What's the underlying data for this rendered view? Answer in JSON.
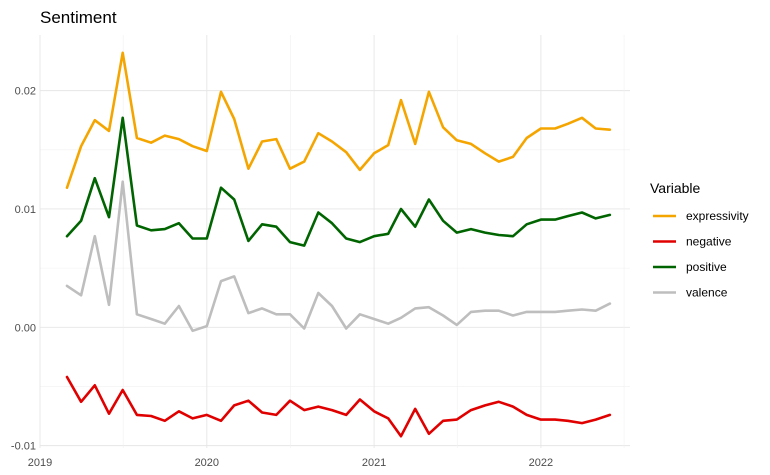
{
  "chart_data": {
    "type": "line",
    "title": "Sentiment",
    "xlabel": "",
    "ylabel": "",
    "x_ticks": [
      "2019",
      "2020",
      "2021",
      "2022"
    ],
    "y_ticks": [
      "0.02",
      "0.01",
      "0.00",
      "-0.01"
    ],
    "y_tick_values": [
      0.02,
      0.01,
      0.0,
      -0.01
    ],
    "xlim": [
      "2019-01-01",
      "2022-07-15"
    ],
    "ylim": [
      -0.0102,
      0.0247
    ],
    "grid": true,
    "legend": {
      "title": "Variable",
      "position": "right"
    },
    "x": [
      "2019-03-01",
      "2019-04-01",
      "2019-05-01",
      "2019-06-01",
      "2019-07-01",
      "2019-08-01",
      "2019-09-01",
      "2019-10-01",
      "2019-11-01",
      "2019-12-01",
      "2020-01-01",
      "2020-02-01",
      "2020-03-01",
      "2020-04-01",
      "2020-05-01",
      "2020-06-01",
      "2020-07-01",
      "2020-08-01",
      "2020-09-01",
      "2020-10-01",
      "2020-11-01",
      "2020-12-01",
      "2021-01-01",
      "2021-02-01",
      "2021-03-01",
      "2021-04-01",
      "2021-05-01",
      "2021-06-01",
      "2021-07-01",
      "2021-08-01",
      "2021-09-01",
      "2021-10-01",
      "2021-11-01",
      "2021-12-01",
      "2022-01-01",
      "2022-02-01",
      "2022-03-01",
      "2022-04-01",
      "2022-05-01",
      "2022-06-01"
    ],
    "series": [
      {
        "name": "expressivity",
        "color": "#f5a500",
        "values": [
          0.0118,
          0.0153,
          0.0175,
          0.0166,
          0.0232,
          0.016,
          0.0156,
          0.0162,
          0.0159,
          0.0153,
          0.0149,
          0.0199,
          0.0176,
          0.0134,
          0.0157,
          0.0159,
          0.0134,
          0.014,
          0.0164,
          0.0157,
          0.0148,
          0.0133,
          0.0147,
          0.0154,
          0.0192,
          0.0155,
          0.0199,
          0.0169,
          0.0158,
          0.0155,
          0.0147,
          0.014,
          0.0144,
          0.016,
          0.0168,
          0.0168,
          0.0172,
          0.0177,
          0.0168,
          0.0167
        ]
      },
      {
        "name": "negative",
        "color": "#e00000",
        "values": [
          -0.0042,
          -0.0063,
          -0.0049,
          -0.0073,
          -0.0053,
          -0.0074,
          -0.0075,
          -0.0079,
          -0.0071,
          -0.0077,
          -0.0074,
          -0.0079,
          -0.0066,
          -0.0062,
          -0.0072,
          -0.0074,
          -0.0062,
          -0.007,
          -0.0067,
          -0.007,
          -0.0074,
          -0.0061,
          -0.0071,
          -0.0077,
          -0.0092,
          -0.0069,
          -0.009,
          -0.0079,
          -0.0078,
          -0.007,
          -0.0066,
          -0.0063,
          -0.0067,
          -0.0074,
          -0.0078,
          -0.0078,
          -0.0079,
          -0.0081,
          -0.0078,
          -0.0074
        ]
      },
      {
        "name": "positive",
        "color": "#006400",
        "values": [
          0.0077,
          0.009,
          0.0126,
          0.0093,
          0.0177,
          0.0086,
          0.0082,
          0.0083,
          0.0088,
          0.0075,
          0.0075,
          0.0118,
          0.0108,
          0.0073,
          0.0087,
          0.0085,
          0.0072,
          0.0069,
          0.0097,
          0.0088,
          0.0075,
          0.0072,
          0.0077,
          0.0079,
          0.01,
          0.0085,
          0.0108,
          0.009,
          0.008,
          0.0083,
          0.008,
          0.0078,
          0.0077,
          0.0087,
          0.0091,
          0.0091,
          0.0094,
          0.0097,
          0.0092,
          0.0095
        ]
      },
      {
        "name": "valence",
        "color": "#bebebe",
        "values": [
          0.0035,
          0.0027,
          0.0077,
          0.0019,
          0.0123,
          0.0011,
          0.0007,
          0.0003,
          0.0018,
          -0.0003,
          0.0001,
          0.0039,
          0.0043,
          0.0012,
          0.0016,
          0.0011,
          0.0011,
          -0.0001,
          0.0029,
          0.0018,
          -0.0001,
          0.0011,
          0.0007,
          0.0003,
          0.0008,
          0.0016,
          0.0017,
          0.001,
          0.0002,
          0.0013,
          0.0014,
          0.0014,
          0.001,
          0.0013,
          0.0013,
          0.0013,
          0.0014,
          0.0015,
          0.0014,
          0.002
        ]
      }
    ]
  }
}
